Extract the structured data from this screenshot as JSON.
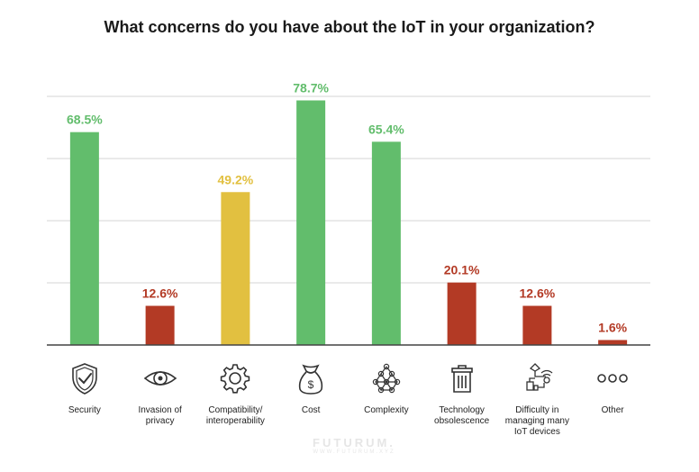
{
  "chart_data": {
    "type": "bar",
    "title": "What concerns do you have about the IoT in your organization?",
    "categories": [
      "Security",
      "Invasion of\nprivacy",
      "Compatibility/\ninteroperability",
      "Cost",
      "Complexity",
      "Technology\nobsolescence",
      "Difficulty in\nmanaging many\nIoT devices",
      "Other"
    ],
    "values": [
      68.5,
      12.6,
      49.2,
      78.7,
      65.4,
      20.1,
      12.6,
      1.6
    ],
    "value_labels": [
      "68.5%",
      "12.6%",
      "49.2%",
      "78.7%",
      "65.4%",
      "20.1%",
      "12.6%",
      "1.6%"
    ],
    "bar_colors": [
      "#62bd6c",
      "#b33a25",
      "#e2c040",
      "#62bd6c",
      "#62bd6c",
      "#b33a25",
      "#b33a25",
      "#b33a25"
    ],
    "icons": [
      "shield-check-icon",
      "eye-icon",
      "gear-icon",
      "money-bag-icon",
      "network-icon",
      "trash-bin-icon",
      "connected-devices-icon",
      "dots-icon"
    ],
    "ylim": [
      0,
      80
    ],
    "grid": true,
    "xlabel": "",
    "ylabel": ""
  },
  "watermark": {
    "logo": "FUTURUM.",
    "sub": "WWW.FUTURUM.XYZ"
  }
}
